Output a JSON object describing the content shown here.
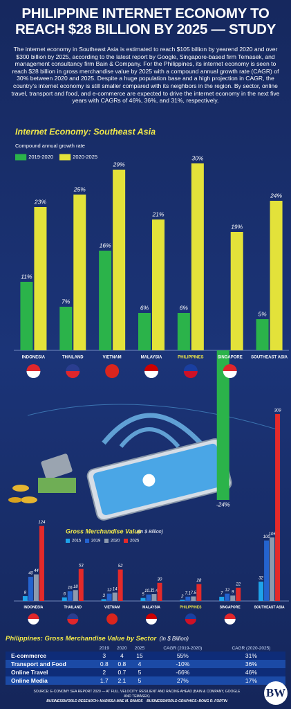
{
  "header": {
    "title": "PHILIPPINE INTERNET ECONOMY TO REACH $28 BILLION BY 2025 — STUDY",
    "body": "The internet economy in Southeast Asia is estimated to reach $105 billion by yearend 2020 and over $300 billion by 2025, according to the latest report by Google, Singapore-based firm Temasek, and management consultancy firm Bain & Company. For the Philippines, its internet economy is seen to reach $28 billion in gross merchandise value by 2025 with a compound annual growth rate (CAGR) of 30% between 2020 and 2025. Despite a huge population base and a high projection in CAGR, the country’s internet economy is still smaller compared with its neighbors in the region. By sector, online travel, transport and food, and e-commerce are expected to drive the internet economy in the next five years with CAGRs of 46%, 36%, and 31%, respectively."
  },
  "chart_data": [
    {
      "type": "bar",
      "title": "Internet Economy: Southeast Asia",
      "subtitle": "Compound annual growth rate",
      "categories": [
        "INDONESIA",
        "THAILAND",
        "VIETNAM",
        "MALAYSIA",
        "PHILIPPINES",
        "SINGAPORE",
        "SOUTHEAST ASIA"
      ],
      "series": [
        {
          "name": "2019-2020",
          "color": "#2bb34a",
          "values": [
            11,
            7,
            16,
            6,
            6,
            -24,
            5
          ],
          "value_labels": [
            "11%",
            "7%",
            "16%",
            "6%",
            "6%",
            "-24%",
            "5%"
          ]
        },
        {
          "name": "2020-2025",
          "color": "#e3e23a",
          "values": [
            23,
            25,
            29,
            21,
            30,
            19,
            24
          ],
          "value_labels": [
            "23%",
            "25%",
            "29%",
            "21%",
            "30%",
            "19%",
            "24%"
          ]
        }
      ]
    },
    {
      "type": "bar",
      "title": "Gross Merchandise Value",
      "subtitle": "(In $ Billion)",
      "categories": [
        "INDONESIA",
        "THAILAND",
        "VIETNAM",
        "MALAYSIA",
        "PHILIPPINES",
        "SINGAPORE",
        "SOUTHEAST ASIA"
      ],
      "series": [
        {
          "name": "2015",
          "color": "#1ea3ea",
          "values": [
            8,
            6,
            3,
            5,
            2,
            7,
            32
          ]
        },
        {
          "name": "2019",
          "color": "#2463cf",
          "values": [
            40,
            16,
            12,
            10.7,
            7.1,
            12,
            100
          ]
        },
        {
          "name": "2020",
          "color": "#8d9aae",
          "values": [
            44,
            18,
            14,
            11.4,
            7.5,
            9,
            105
          ]
        },
        {
          "name": "2025",
          "color": "#e42a2a",
          "values": [
            124,
            53,
            52,
            30,
            28,
            22,
            309
          ]
        }
      ]
    }
  ],
  "table": {
    "title": "Philippines: Gross Merchandise Value by Sector",
    "subtitle": "(In $ Billion)",
    "header": [
      "2019",
      "2020",
      "2025",
      "CAGR (2019-2020)",
      "CAGR (2020-2025)"
    ],
    "rows": [
      [
        "E-commerce",
        "3",
        "4",
        "15",
        "55%",
        "31%"
      ],
      [
        "Transport and Food",
        "0.8",
        "0.8",
        "4",
        "-10%",
        "36%"
      ],
      [
        "Online Travel",
        "2",
        "0.7",
        "5",
        "-66%",
        "46%"
      ],
      [
        "Online Media",
        "1.7",
        "2.1",
        "5",
        "27%",
        "17%"
      ]
    ]
  },
  "footer": {
    "source": "SOURCE: E-CONOMY SEA REPORT 2020 — AT FULL VELOCITY: RESILIENT AND RACING AHEAD (BAIN & COMPANY, GOOGLE AND TEMASEK)",
    "research": "BUSINESSWORLD RESEARCH: MARISSA MAE M. RAMOS",
    "graphics": "BUSINESSWORLD GRAPHICS: BONG R. FORTIN",
    "logo": "BW"
  }
}
